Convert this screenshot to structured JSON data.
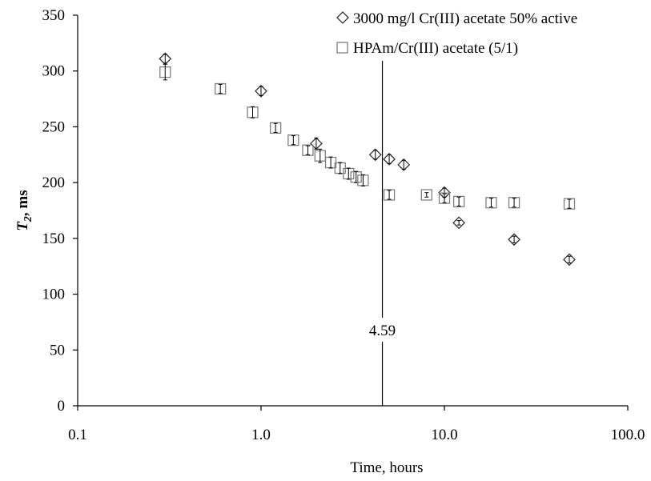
{
  "chart_data": {
    "type": "scatter",
    "x_scale": "log",
    "xlim": [
      0.1,
      100.0
    ],
    "ylim": [
      0,
      350
    ],
    "grid": false,
    "legend_position": "top-right",
    "xlabel": "Time, hours",
    "ylabel_main": "T",
    "ylabel_sub": "2",
    "ylabel_rest": ", ms",
    "x_ticks": [
      {
        "value": 0.1,
        "label": "0.1"
      },
      {
        "value": 1,
        "label": "1.0"
      },
      {
        "value": 10,
        "label": "10.0"
      },
      {
        "value": 100,
        "label": "100.0"
      }
    ],
    "y_ticks": [
      {
        "value": 0,
        "label": "0"
      },
      {
        "value": 50,
        "label": "50"
      },
      {
        "value": 100,
        "label": "100"
      },
      {
        "value": 150,
        "label": "150"
      },
      {
        "value": 200,
        "label": "200"
      },
      {
        "value": 250,
        "label": "250"
      },
      {
        "value": 300,
        "label": "300"
      },
      {
        "value": 350,
        "label": "350"
      }
    ],
    "series": [
      {
        "name": "3000 mg/l Cr(III) acetate 50% active",
        "marker": "diamond",
        "points": [
          {
            "x": 0.3,
            "y": 311,
            "err": 4
          },
          {
            "x": 1.0,
            "y": 282,
            "err": 4
          },
          {
            "x": 2.0,
            "y": 235,
            "err": 5
          },
          {
            "x": 4.2,
            "y": 225,
            "err": 4
          },
          {
            "x": 5.0,
            "y": 221,
            "err": 4
          },
          {
            "x": 6.0,
            "y": 216,
            "err": 4
          },
          {
            "x": 10.0,
            "y": 191,
            "err": 4
          },
          {
            "x": 12.0,
            "y": 164,
            "err": 2
          },
          {
            "x": 24.0,
            "y": 149,
            "err": 3
          },
          {
            "x": 48.0,
            "y": 131,
            "err": 3
          }
        ]
      },
      {
        "name": "HPAm/Cr(III) acetate (5/1)",
        "marker": "square",
        "points": [
          {
            "x": 0.3,
            "y": 299,
            "err": 7
          },
          {
            "x": 0.6,
            "y": 284,
            "err": 4
          },
          {
            "x": 0.9,
            "y": 263,
            "err": 5
          },
          {
            "x": 1.2,
            "y": 249,
            "err": 4
          },
          {
            "x": 1.5,
            "y": 238,
            "err": 4
          },
          {
            "x": 1.8,
            "y": 229,
            "err": 4
          },
          {
            "x": 2.1,
            "y": 224,
            "err": 6
          },
          {
            "x": 2.4,
            "y": 218,
            "err": 5
          },
          {
            "x": 2.7,
            "y": 213,
            "err": 5
          },
          {
            "x": 3.0,
            "y": 208,
            "err": 5
          },
          {
            "x": 3.3,
            "y": 205,
            "err": 5
          },
          {
            "x": 3.6,
            "y": 202,
            "err": 5
          },
          {
            "x": 5.0,
            "y": 189,
            "err": 4
          },
          {
            "x": 8.0,
            "y": 189,
            "err": 2
          },
          {
            "x": 10.0,
            "y": 186,
            "err": 4
          },
          {
            "x": 12.0,
            "y": 183,
            "err": 4
          },
          {
            "x": 18.0,
            "y": 182,
            "err": 4
          },
          {
            "x": 24.0,
            "y": 182,
            "err": 4
          },
          {
            "x": 48.0,
            "y": 181,
            "err": 4
          }
        ]
      }
    ],
    "annotations": [
      {
        "x": 4.59,
        "label": "4.59"
      }
    ]
  },
  "colors": {
    "axis": "#000000",
    "diamond_stroke": "#333333",
    "square_stroke": "#808080",
    "errorbar": "#000000",
    "vline": "#000000"
  }
}
